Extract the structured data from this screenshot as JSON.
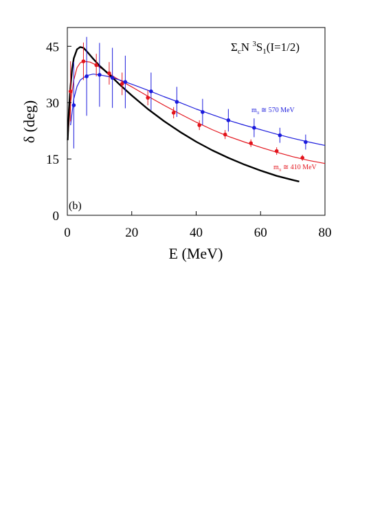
{
  "chart_data": {
    "type": "line",
    "panel_label": "(b)",
    "title_parts": {
      "main": "Σ",
      "main_sub": "c",
      "main2": "N ",
      "sup": "3",
      "s": "S",
      "s_sub": "1",
      "tail": "(I=1/2)"
    },
    "xlabel": "E (MeV)",
    "ylabel": "δ (deg)",
    "xlim": [
      0,
      80
    ],
    "ylim": [
      0,
      50
    ],
    "xticks": [
      0,
      20,
      40,
      60,
      80
    ],
    "yticks": [
      0,
      15,
      30,
      45
    ],
    "grid": false,
    "series": [
      {
        "label_parts": {
          "m": "m",
          "sub": "π",
          "rest": " ≅ 410 MeV"
        },
        "color": "#e3141c",
        "points": [
          {
            "x": 1,
            "y": 33,
            "err": 8
          },
          {
            "x": 5,
            "y": 41,
            "err": 5
          },
          {
            "x": 9,
            "y": 40,
            "err": 3
          },
          {
            "x": 13,
            "y": 37.8,
            "err": 3
          },
          {
            "x": 17,
            "y": 35,
            "err": 3
          },
          {
            "x": 25,
            "y": 31.3,
            "err": 2
          },
          {
            "x": 33,
            "y": 27.3,
            "err": 1.5
          },
          {
            "x": 41,
            "y": 24,
            "err": 1.3
          },
          {
            "x": 49,
            "y": 21.5,
            "err": 1.2
          },
          {
            "x": 57,
            "y": 19.2,
            "err": 1
          },
          {
            "x": 65,
            "y": 17.1,
            "err": 1
          },
          {
            "x": 73,
            "y": 15.3,
            "err": 0.8
          }
        ],
        "curve": [
          [
            0.3,
            22
          ],
          [
            1,
            30
          ],
          [
            2,
            36
          ],
          [
            3,
            39.3
          ],
          [
            4,
            40.6
          ],
          [
            5,
            41
          ],
          [
            7,
            40.8
          ],
          [
            9,
            40
          ],
          [
            12,
            38.3
          ],
          [
            15,
            36.6
          ],
          [
            20,
            34.2
          ],
          [
            25,
            31.7
          ],
          [
            30,
            29.3
          ],
          [
            35,
            27
          ],
          [
            40,
            24.8
          ],
          [
            45,
            22.8
          ],
          [
            50,
            21
          ],
          [
            55,
            19.5
          ],
          [
            60,
            18.1
          ],
          [
            65,
            16.8
          ],
          [
            70,
            15.6
          ],
          [
            75,
            14.6
          ],
          [
            80,
            13.8
          ]
        ]
      },
      {
        "label_parts": {
          "m": "m",
          "sub": "π",
          "rest": " ≅ 570 MeV"
        },
        "color": "#1a1adc",
        "points": [
          {
            "x": 2,
            "y": 29.3,
            "err": 11.5
          },
          {
            "x": 6,
            "y": 37,
            "err": 10.5
          },
          {
            "x": 10,
            "y": 37.4,
            "err": 8.5
          },
          {
            "x": 14,
            "y": 36.6,
            "err": 8
          },
          {
            "x": 18,
            "y": 35.5,
            "err": 7
          },
          {
            "x": 26,
            "y": 33,
            "err": 5
          },
          {
            "x": 34,
            "y": 30.2,
            "err": 4
          },
          {
            "x": 42,
            "y": 27.5,
            "err": 3.5
          },
          {
            "x": 50,
            "y": 25.3,
            "err": 3
          },
          {
            "x": 58,
            "y": 23.3,
            "err": 2.5
          },
          {
            "x": 66,
            "y": 21.3,
            "err": 2
          },
          {
            "x": 74,
            "y": 19.5,
            "err": 2
          }
        ],
        "curve": [
          [
            1,
            24
          ],
          [
            2,
            31
          ],
          [
            3,
            34.3
          ],
          [
            4,
            36
          ],
          [
            6,
            37.2
          ],
          [
            8,
            37.6
          ],
          [
            10,
            37.4
          ],
          [
            13,
            36.9
          ],
          [
            16,
            36.1
          ],
          [
            20,
            34.9
          ],
          [
            25,
            33.3
          ],
          [
            30,
            31.6
          ],
          [
            35,
            30
          ],
          [
            40,
            28.3
          ],
          [
            45,
            26.8
          ],
          [
            50,
            25.3
          ],
          [
            55,
            24
          ],
          [
            60,
            22.8
          ],
          [
            65,
            21.6
          ],
          [
            70,
            20.5
          ],
          [
            75,
            19.5
          ],
          [
            80,
            18.6
          ]
        ]
      },
      {
        "color": "#000000",
        "curve": [
          [
            0.1,
            20
          ],
          [
            0.5,
            28
          ],
          [
            1,
            34.5
          ],
          [
            1.5,
            39
          ],
          [
            2,
            41.8
          ],
          [
            3,
            44.2
          ],
          [
            4,
            44.8
          ],
          [
            5,
            44.6
          ],
          [
            6,
            43.7
          ],
          [
            8,
            41.7
          ],
          [
            10,
            39.8
          ],
          [
            13,
            37.5
          ],
          [
            16,
            35
          ],
          [
            20,
            31.9
          ],
          [
            25,
            28.3
          ],
          [
            30,
            25.1
          ],
          [
            35,
            22.2
          ],
          [
            40,
            19.6
          ],
          [
            45,
            17.3
          ],
          [
            50,
            15.3
          ],
          [
            55,
            13.5
          ],
          [
            60,
            11.9
          ],
          [
            65,
            10.5
          ],
          [
            70,
            9.4
          ],
          [
            72,
            9
          ]
        ]
      }
    ]
  }
}
